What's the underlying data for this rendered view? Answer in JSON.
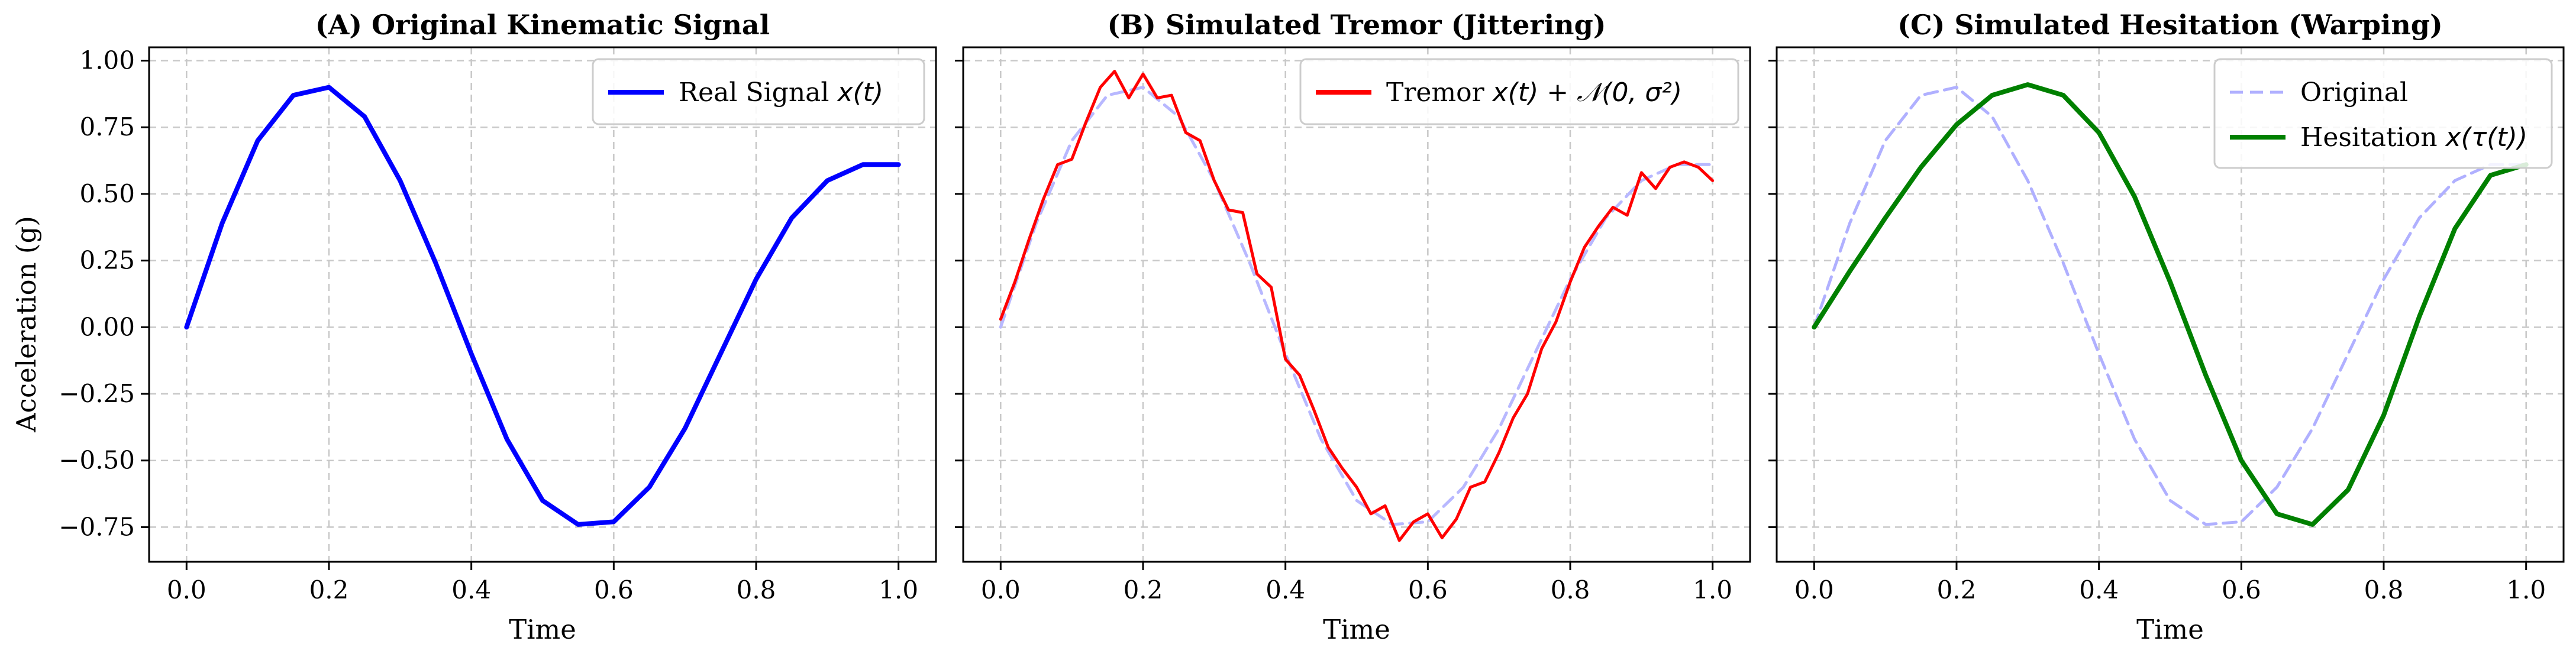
{
  "figure": {
    "shared_ylabel": "Acceleration (g)",
    "x_ticks": [
      "0.0",
      "0.2",
      "0.4",
      "0.6",
      "0.8",
      "1.0"
    ],
    "y_ticks": [
      "1.00",
      "0.75",
      "0.50",
      "0.25",
      "0.00",
      "−0.25",
      "−0.50",
      "−0.75"
    ]
  },
  "chart_data": [
    {
      "type": "line",
      "title": "(A) Original Kinematic Signal",
      "xlabel": "Time",
      "ylabel": "Acceleration (g)",
      "xlim": [
        0,
        1
      ],
      "ylim": [
        -0.88,
        1.05
      ],
      "grid": true,
      "legend_position": "top-right",
      "legend": [
        {
          "text": "Real Signal",
          "math": "x(t)"
        }
      ],
      "series": [
        {
          "name": "Real Signal x(t)",
          "color": "#0000ff",
          "style": "solid",
          "x": [
            0,
            0.05,
            0.1,
            0.15,
            0.2,
            0.25,
            0.3,
            0.35,
            0.4,
            0.45,
            0.5,
            0.55,
            0.6,
            0.65,
            0.7,
            0.75,
            0.8,
            0.85,
            0.9,
            0.95,
            1.0
          ],
          "y": [
            0,
            0.39,
            0.7,
            0.87,
            0.9,
            0.79,
            0.55,
            0.24,
            -0.1,
            -0.42,
            -0.65,
            -0.74,
            -0.73,
            -0.6,
            -0.38,
            -0.1,
            0.18,
            0.41,
            0.55,
            0.61,
            0.61
          ]
        }
      ]
    },
    {
      "type": "line",
      "title": "(B) Simulated Tremor (Jittering)",
      "xlabel": "Time",
      "xlim": [
        0,
        1
      ],
      "ylim": [
        -0.88,
        1.05
      ],
      "grid": true,
      "legend_position": "top-right",
      "legend": [
        {
          "text": "Tremor",
          "math": "x(t) + 𝒩(0, σ²)"
        }
      ],
      "series": [
        {
          "name": "Original",
          "color": "#b8b8ff",
          "style": "dashed",
          "x": [
            0,
            0.05,
            0.1,
            0.15,
            0.2,
            0.25,
            0.3,
            0.35,
            0.4,
            0.45,
            0.5,
            0.55,
            0.6,
            0.65,
            0.7,
            0.75,
            0.8,
            0.85,
            0.9,
            0.95,
            1.0
          ],
          "y": [
            0,
            0.39,
            0.7,
            0.87,
            0.9,
            0.79,
            0.55,
            0.24,
            -0.1,
            -0.42,
            -0.65,
            -0.74,
            -0.73,
            -0.6,
            -0.38,
            -0.1,
            0.18,
            0.41,
            0.55,
            0.61,
            0.61
          ]
        },
        {
          "name": "Tremor x(t) + N(0, σ²)",
          "color": "#ff0000",
          "style": "solid",
          "x": [
            0,
            0.02,
            0.04,
            0.06,
            0.08,
            0.1,
            0.12,
            0.14,
            0.16,
            0.18,
            0.2,
            0.22,
            0.24,
            0.26,
            0.28,
            0.3,
            0.32,
            0.34,
            0.36,
            0.38,
            0.4,
            0.42,
            0.44,
            0.46,
            0.48,
            0.5,
            0.52,
            0.54,
            0.56,
            0.58,
            0.6,
            0.62,
            0.64,
            0.66,
            0.68,
            0.7,
            0.72,
            0.74,
            0.76,
            0.78,
            0.8,
            0.82,
            0.84,
            0.86,
            0.88,
            0.9,
            0.92,
            0.94,
            0.96,
            0.98,
            1.0
          ],
          "y": [
            0.03,
            0.17,
            0.33,
            0.48,
            0.61,
            0.63,
            0.77,
            0.9,
            0.96,
            0.86,
            0.95,
            0.86,
            0.87,
            0.73,
            0.7,
            0.55,
            0.44,
            0.43,
            0.2,
            0.15,
            -0.12,
            -0.18,
            -0.31,
            -0.45,
            -0.53,
            -0.6,
            -0.7,
            -0.67,
            -0.8,
            -0.73,
            -0.7,
            -0.79,
            -0.72,
            -0.6,
            -0.58,
            -0.47,
            -0.34,
            -0.25,
            -0.08,
            0.02,
            0.17,
            0.3,
            0.38,
            0.45,
            0.42,
            0.58,
            0.52,
            0.6,
            0.62,
            0.6,
            0.55
          ]
        }
      ]
    },
    {
      "type": "line",
      "title": "(C) Simulated Hesitation (Warping)",
      "xlabel": "Time",
      "xlim": [
        0,
        1
      ],
      "ylim": [
        -0.88,
        1.05
      ],
      "grid": true,
      "legend_position": "top-right",
      "legend": [
        {
          "text": "Original",
          "math": ""
        },
        {
          "text": "Hesitation",
          "math": "x(τ(t))"
        }
      ],
      "series": [
        {
          "name": "Original",
          "color": "#b0b0ff",
          "style": "dashed",
          "x": [
            0,
            0.05,
            0.1,
            0.15,
            0.2,
            0.25,
            0.3,
            0.35,
            0.4,
            0.45,
            0.5,
            0.55,
            0.6,
            0.65,
            0.7,
            0.75,
            0.8,
            0.85,
            0.9,
            0.95,
            1.0
          ],
          "y": [
            0,
            0.39,
            0.7,
            0.87,
            0.9,
            0.79,
            0.55,
            0.24,
            -0.1,
            -0.42,
            -0.65,
            -0.74,
            -0.73,
            -0.6,
            -0.38,
            -0.1,
            0.18,
            0.41,
            0.55,
            0.61,
            0.61
          ]
        },
        {
          "name": "Hesitation x(τ(t))",
          "color": "#008000",
          "style": "solid",
          "x": [
            0,
            0.05,
            0.1,
            0.15,
            0.2,
            0.25,
            0.3,
            0.35,
            0.4,
            0.45,
            0.5,
            0.55,
            0.6,
            0.65,
            0.7,
            0.75,
            0.8,
            0.85,
            0.9,
            0.95,
            1.0
          ],
          "y": [
            0,
            0.21,
            0.41,
            0.6,
            0.76,
            0.87,
            0.91,
            0.87,
            0.73,
            0.49,
            0.17,
            -0.18,
            -0.5,
            -0.7,
            -0.74,
            -0.61,
            -0.33,
            0.04,
            0.37,
            0.57,
            0.61
          ]
        }
      ]
    }
  ]
}
